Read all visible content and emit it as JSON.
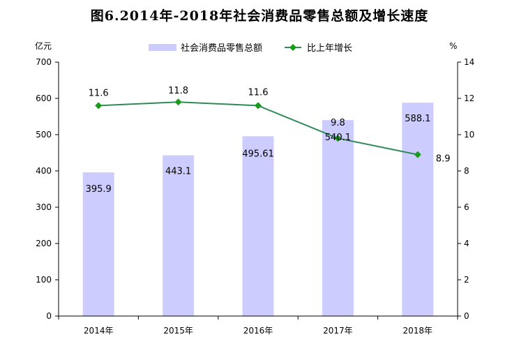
{
  "title": "图6.2014年-2018年社会消费品零售总额及增长速度",
  "colors": {
    "bar": "#ccccff",
    "line": "#2e8b57",
    "marker": "#1a9a1a",
    "axis": "#000000",
    "text": "#000000"
  },
  "chart_data": {
    "type": "bar+line",
    "categories": [
      "2014年",
      "2015年",
      "2016年",
      "2017年",
      "2018年"
    ],
    "left_axis": {
      "unit": "亿元",
      "ylim": [
        0,
        700
      ],
      "ticks": [
        0,
        100,
        200,
        300,
        400,
        500,
        600,
        700
      ]
    },
    "right_axis": {
      "unit": "%",
      "ylim": [
        0,
        14
      ],
      "ticks": [
        0,
        2,
        4,
        6,
        8,
        10,
        12,
        14
      ]
    },
    "series": [
      {
        "name": "社会消费品零售总额",
        "type": "bar",
        "axis": "left",
        "values": [
          395.9,
          443.1,
          495.61,
          540.1,
          588.1
        ],
        "labels": [
          "395.9",
          "443.1",
          "495.61",
          "540.1",
          "588.1"
        ]
      },
      {
        "name": "比上年增长",
        "type": "line",
        "axis": "right",
        "marker": "diamond",
        "values": [
          11.6,
          11.8,
          11.6,
          9.8,
          8.9
        ],
        "labels": [
          "11.6",
          "11.8",
          "11.6",
          "9.8",
          "8.9"
        ]
      }
    ],
    "legend_position": "top-center",
    "grid": false
  }
}
